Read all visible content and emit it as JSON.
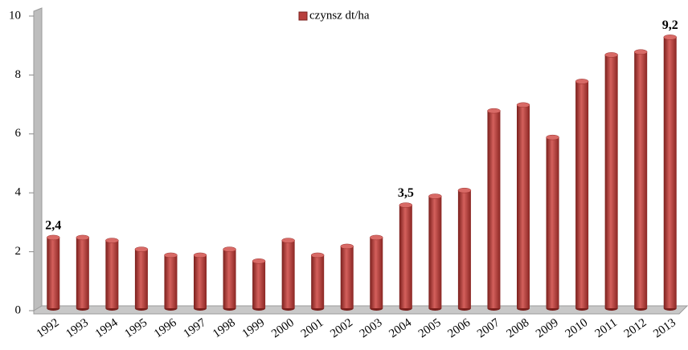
{
  "chart_data": {
    "type": "bar",
    "legend": "czynsz dt/ha",
    "categories": [
      "1992",
      "1993",
      "1994",
      "1995",
      "1996",
      "1997",
      "1998",
      "1999",
      "2000",
      "2001",
      "2002",
      "2003",
      "2004",
      "2005",
      "2006",
      "2007",
      "2008",
      "2009",
      "2010",
      "2011",
      "2012",
      "2013"
    ],
    "values": [
      2.4,
      2.4,
      2.3,
      2.0,
      1.8,
      1.8,
      2.0,
      1.6,
      2.3,
      1.8,
      2.1,
      2.4,
      3.5,
      3.8,
      4.0,
      6.7,
      6.9,
      5.8,
      7.7,
      8.6,
      8.7,
      9.2
    ],
    "value_labels": [
      "2,4",
      null,
      null,
      null,
      null,
      null,
      null,
      null,
      null,
      null,
      null,
      null,
      "3,5",
      null,
      null,
      null,
      null,
      null,
      null,
      null,
      null,
      "9,2"
    ],
    "color": "#b8403d",
    "ylim": [
      0,
      10
    ],
    "yticks": [
      0,
      2,
      4,
      6,
      8,
      10
    ],
    "grid": false,
    "legend_position": "top"
  }
}
